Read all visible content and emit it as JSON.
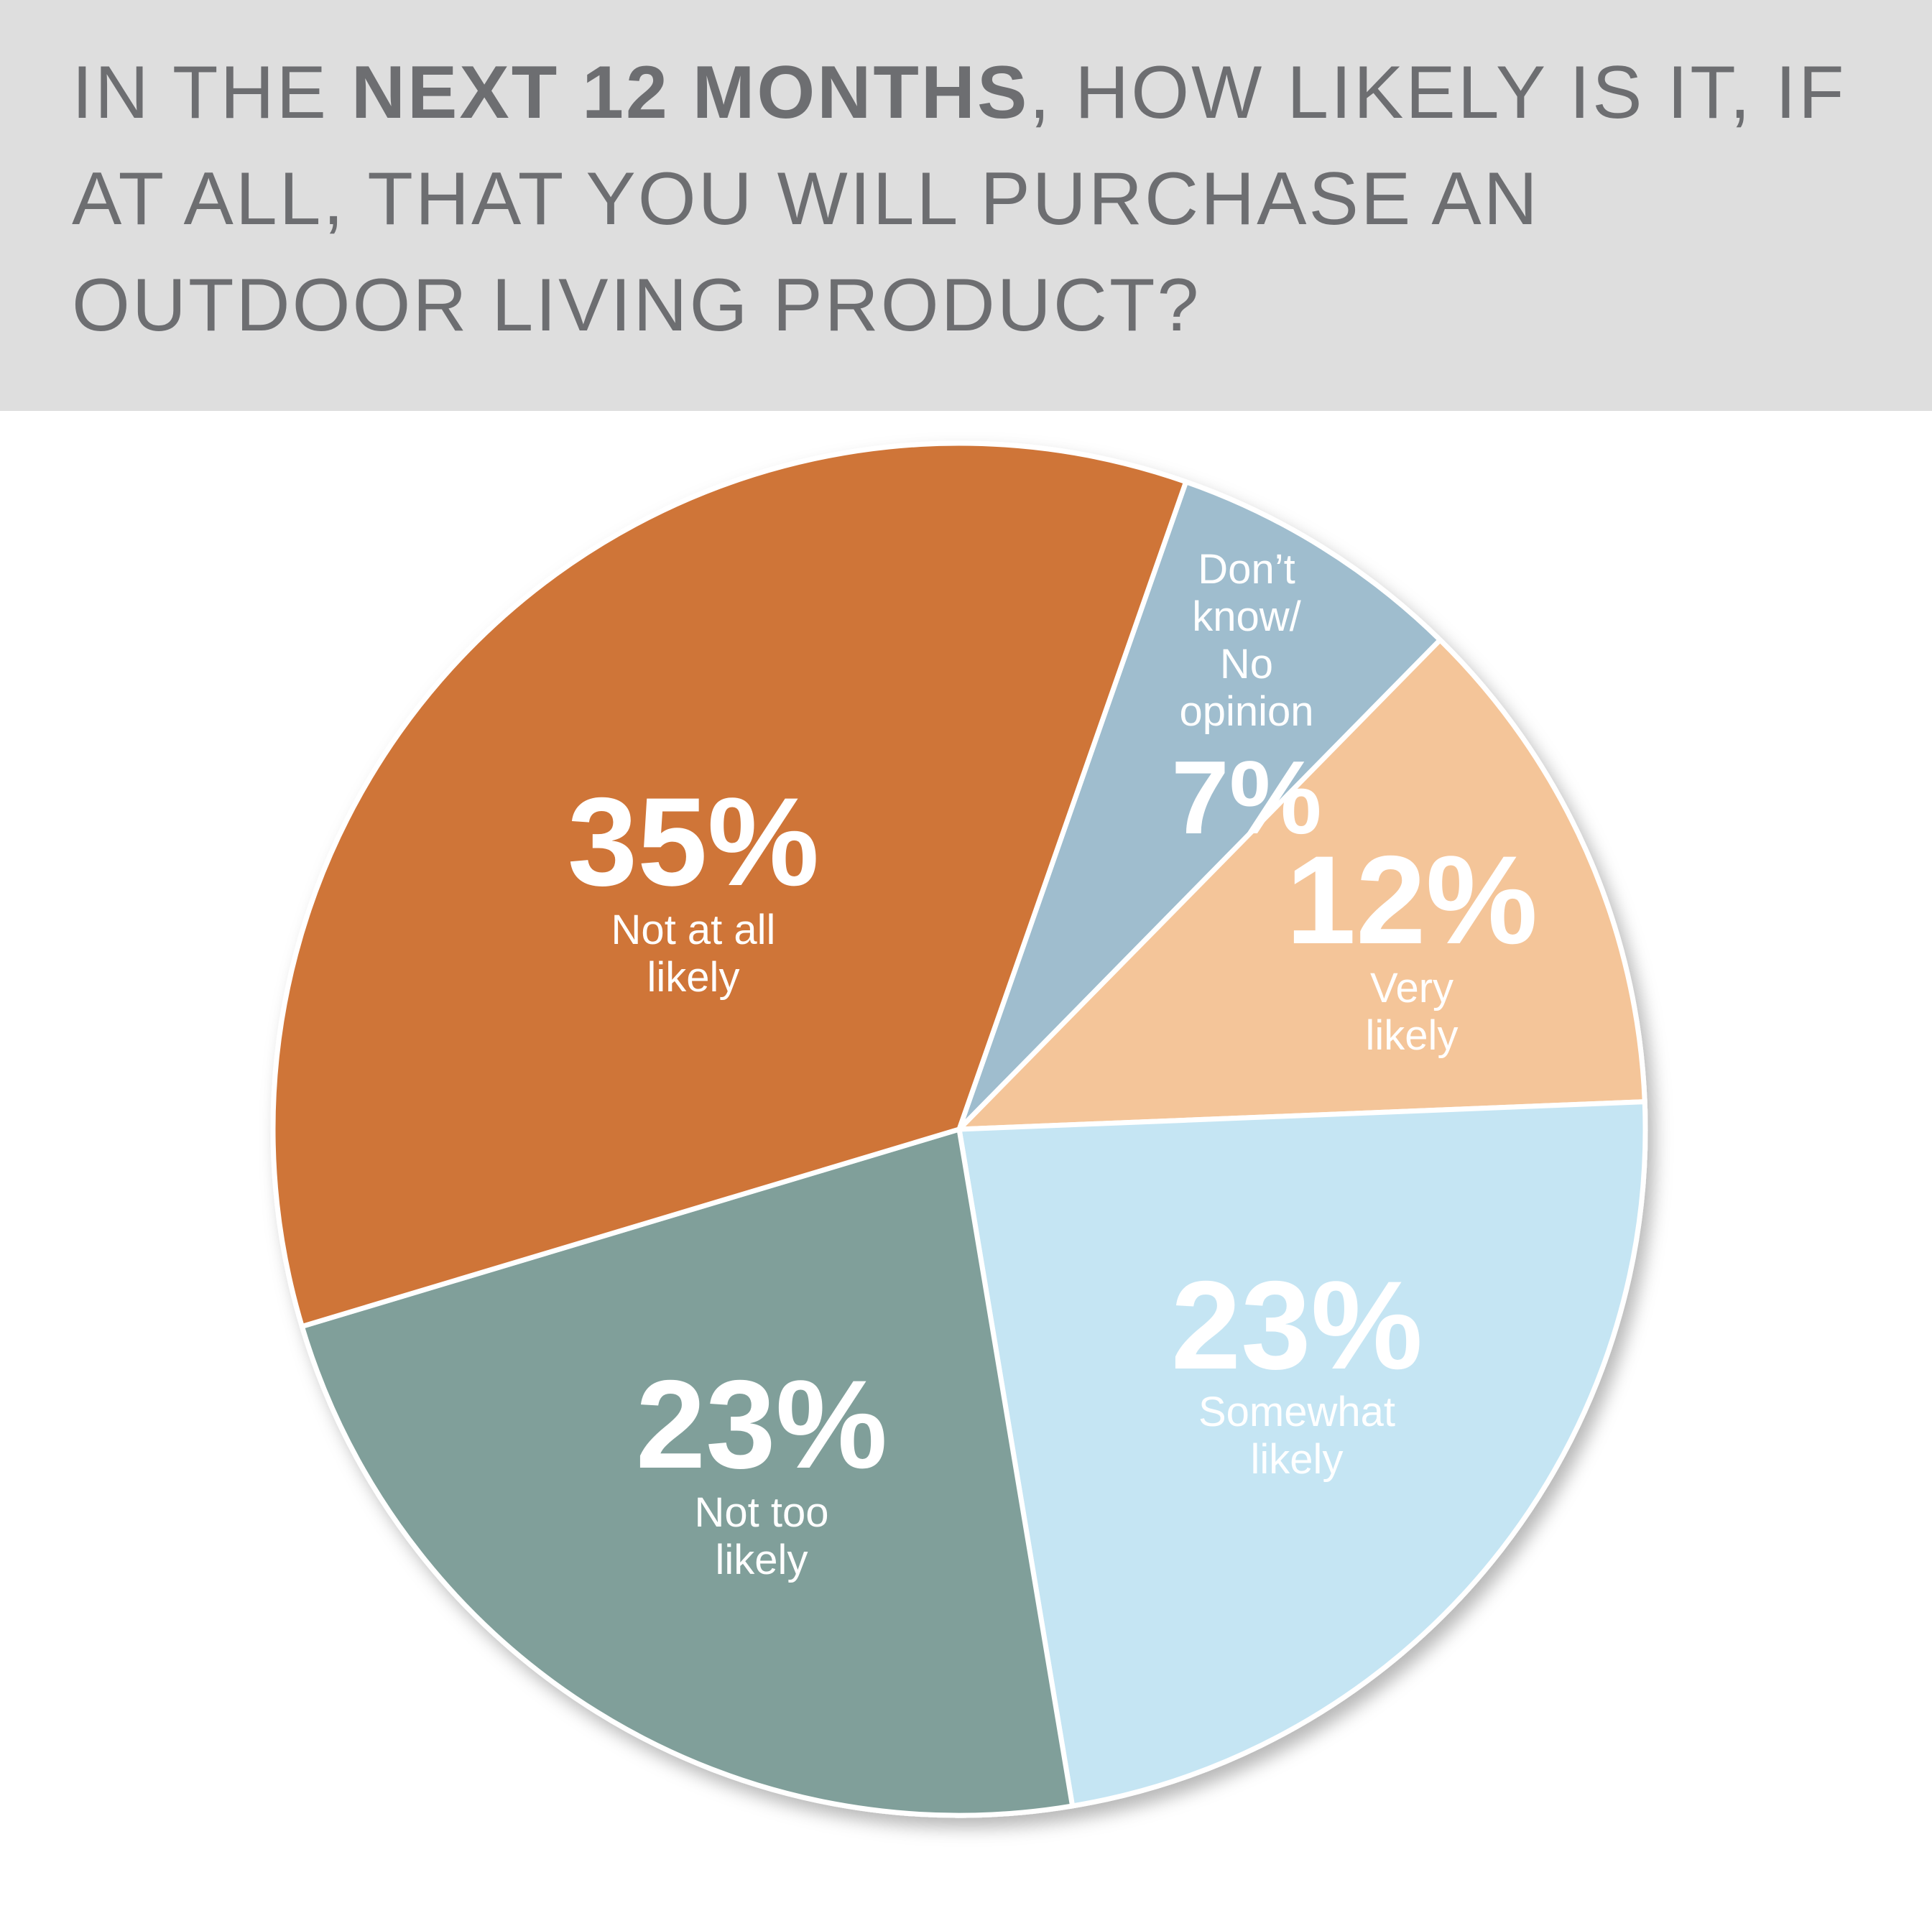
{
  "header": {
    "title_pre": "IN THE ",
    "title_bold": "NEXT 12 MONTHS",
    "title_post": ", HOW LIKELY IS IT, IF AT ALL, THAT YOU WILL PURCHASE AN OUTDOOR LIVING PRODUCT?"
  },
  "chart_data": {
    "type": "pie",
    "title": "IN THE NEXT 12 MONTHS, HOW LIKELY IS IT, IF AT ALL, THAT YOU WILL PURCHASE AN OUTDOOR LIVING PRODUCT?",
    "slices": [
      {
        "key": "dont-know",
        "label_lines": [
          "Don’t",
          "know/",
          "No",
          "opinion"
        ],
        "value": 7,
        "value_label": "7%",
        "color": "#9fbdce"
      },
      {
        "key": "very-likely",
        "label_lines": [
          "Very",
          "likely"
        ],
        "value": 12,
        "value_label": "12%",
        "color": "#f4c599"
      },
      {
        "key": "somewhat-likely",
        "label_lines": [
          "Somewhat",
          "likely"
        ],
        "value": 23,
        "value_label": "23%",
        "color": "#c5e5f3"
      },
      {
        "key": "not-too-likely",
        "label_lines": [
          "Not too",
          "likely"
        ],
        "value": 23,
        "value_label": "23%",
        "color": "#809f9a"
      },
      {
        "key": "not-at-all-likely",
        "label_lines": [
          "Not at all",
          "likely"
        ],
        "value": 35,
        "value_label": "35%",
        "color": "#cf7439"
      }
    ],
    "legend": "none"
  }
}
